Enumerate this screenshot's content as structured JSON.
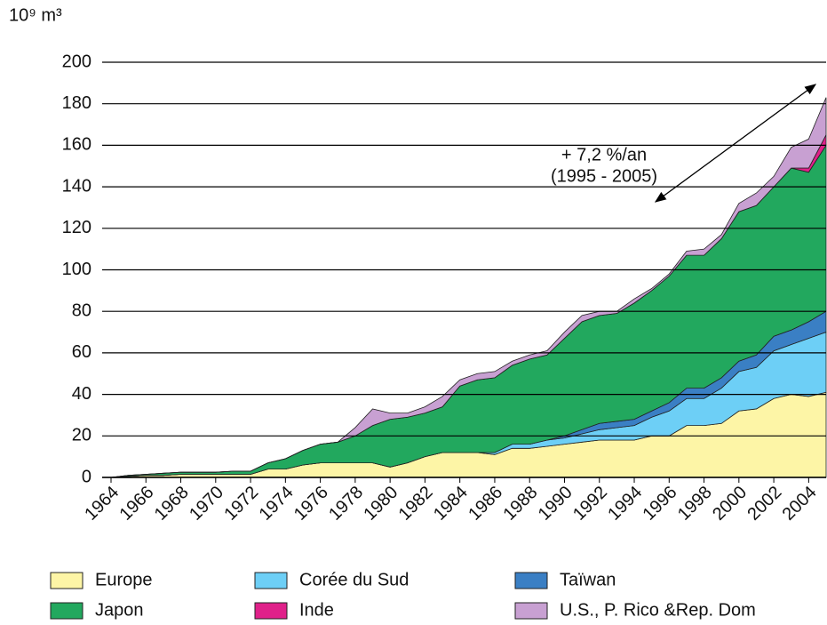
{
  "chart_data": {
    "type": "stacked_area",
    "y_label": "10⁹ m³",
    "annotations": [
      "+ 7,2 %/an",
      "(1995 - 2005)"
    ],
    "x": [
      1964,
      1965,
      1966,
      1967,
      1968,
      1969,
      1970,
      1971,
      1972,
      1973,
      1974,
      1975,
      1976,
      1977,
      1978,
      1979,
      1980,
      1981,
      1982,
      1983,
      1984,
      1985,
      1986,
      1987,
      1988,
      1989,
      1990,
      1991,
      1992,
      1993,
      1994,
      1995,
      1996,
      1997,
      1998,
      1999,
      2000,
      2001,
      2002,
      2003,
      2004,
      2005
    ],
    "xlim": [
      1964,
      2005
    ],
    "xticks": [
      1964,
      1966,
      1968,
      1970,
      1972,
      1974,
      1976,
      1978,
      1980,
      1982,
      1984,
      1986,
      1988,
      1990,
      1992,
      1994,
      1996,
      1998,
      2000,
      2002,
      2004
    ],
    "ylim": [
      0,
      200
    ],
    "yticks": [
      0,
      20,
      40,
      60,
      80,
      100,
      120,
      140,
      160,
      180,
      200
    ],
    "grid": true,
    "series": [
      {
        "name": "Europe",
        "color": "#fdf5a6",
        "values": [
          0,
          0.5,
          1,
          1,
          1.5,
          1.5,
          1.5,
          1.5,
          1.5,
          4,
          4,
          6,
          7,
          7,
          7,
          7,
          5,
          7,
          10,
          12,
          12,
          12,
          11,
          14,
          14,
          15,
          16,
          17,
          18,
          18,
          18,
          20,
          20,
          25,
          25,
          26,
          32,
          33,
          38,
          40,
          39,
          41
        ]
      },
      {
        "name": "Corée du Sud",
        "color": "#6dcff6",
        "values": [
          0,
          0,
          0,
          0,
          0,
          0,
          0,
          0,
          0,
          0,
          0,
          0,
          0,
          0,
          0,
          0,
          0,
          0,
          0,
          0,
          0,
          0,
          1,
          2,
          2,
          3,
          3,
          4,
          5,
          6,
          7,
          9,
          12,
          13,
          13,
          17,
          19,
          20,
          23,
          24,
          28,
          29
        ]
      },
      {
        "name": "Taïwan",
        "color": "#3a7fc4",
        "values": [
          0,
          0,
          0,
          0,
          0,
          0,
          0,
          0,
          0,
          0,
          0,
          0,
          0,
          0,
          0,
          0,
          0,
          0,
          0,
          0,
          0,
          0,
          0,
          0,
          0,
          0,
          1,
          2,
          3,
          3,
          3,
          3,
          4,
          5,
          5,
          5,
          5,
          6,
          7,
          7,
          8,
          10
        ]
      },
      {
        "name": "Japon",
        "color": "#22a85e",
        "values": [
          0,
          0.5,
          0.5,
          1,
          1,
          1,
          1,
          1.5,
          1.5,
          3,
          5,
          7,
          9,
          10,
          13,
          18,
          23,
          22,
          21,
          22,
          32,
          35,
          36,
          38,
          41,
          41,
          47,
          52,
          52,
          52,
          56,
          58,
          61,
          64,
          64,
          67,
          72,
          72,
          72,
          78,
          72,
          80
        ]
      },
      {
        "name": "Inde",
        "color": "#e0218a",
        "values": [
          0,
          0,
          0,
          0,
          0,
          0,
          0,
          0,
          0,
          0,
          0,
          0,
          0,
          0,
          0,
          0,
          0,
          0,
          0,
          0,
          0,
          0,
          0,
          0,
          0,
          0,
          0,
          0,
          0,
          0,
          0,
          0,
          0,
          0,
          0,
          0,
          0,
          0,
          0,
          0,
          2,
          5
        ]
      },
      {
        "name": "U.S., P. Rico &Rep. Dom",
        "color": "#c8a0d2",
        "values": [
          0,
          0,
          0,
          0,
          0,
          0,
          0,
          0,
          0,
          0,
          0,
          0,
          0,
          0,
          4,
          8,
          3,
          2,
          3,
          5,
          3,
          3,
          3,
          2,
          2,
          2,
          3,
          3,
          2,
          1,
          2,
          1,
          1,
          2,
          3,
          2,
          4,
          6,
          5,
          10,
          14,
          18
        ]
      }
    ]
  }
}
